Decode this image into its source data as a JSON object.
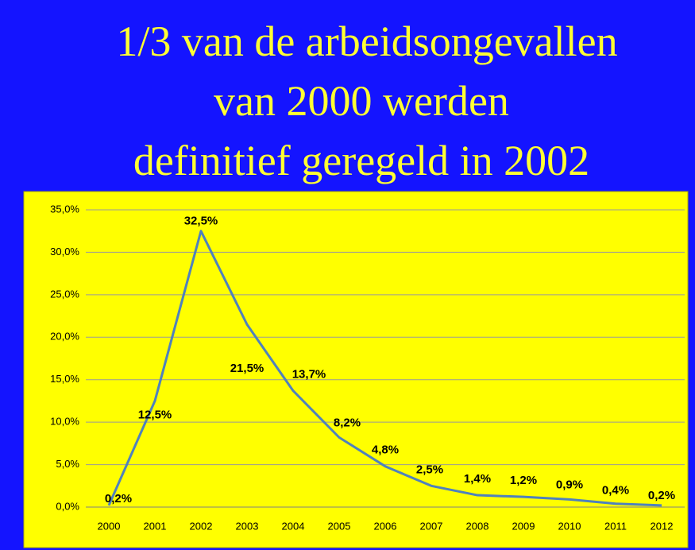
{
  "chart_data": {
    "type": "line",
    "title": [
      "1/3 van de arbeidsongevallen",
      "van 2000 werden",
      "definitief geregeld in 2002"
    ],
    "categories": [
      "2000",
      "2001",
      "2002",
      "2003",
      "2004",
      "2005",
      "2006",
      "2007",
      "2008",
      "2009",
      "2010",
      "2011",
      "2012"
    ],
    "series": [
      {
        "color": "#4f81bd",
        "values": [
          0.2,
          12.5,
          32.5,
          21.5,
          13.7,
          8.2,
          4.8,
          2.5,
          1.4,
          1.2,
          0.9,
          0.4,
          0.2
        ],
        "value_labels": [
          "0,2%",
          "12,5%",
          "32,5%",
          "21,5%",
          "13,7%",
          "8,2%",
          "4,8%",
          "2,5%",
          "1,4%",
          "1,2%",
          "0,9%",
          "0,4%",
          "0,2%"
        ]
      }
    ],
    "ylim": [
      0,
      35
    ],
    "yticks": [
      {
        "value": 0,
        "label": "0,0%"
      },
      {
        "value": 5,
        "label": "5,0%"
      },
      {
        "value": 10,
        "label": "10,0%"
      },
      {
        "value": 15,
        "label": "15,0%"
      },
      {
        "value": 20,
        "label": "20,0%"
      },
      {
        "value": 25,
        "label": "25,0%"
      },
      {
        "value": 30,
        "label": "30,0%"
      },
      {
        "value": 35,
        "label": "35,0%"
      }
    ],
    "grid": true
  }
}
